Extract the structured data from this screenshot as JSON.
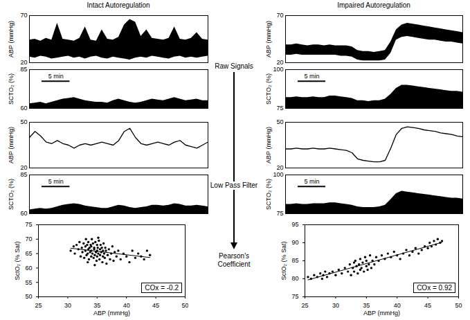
{
  "column_titles": [
    "Intact Autoregulation",
    "Impaired Autoregulation"
  ],
  "stage_labels": [
    "Raw Signals",
    "Low Pass Filter",
    "Pearson's Coefficient"
  ],
  "chart_data": [
    {
      "type": "band",
      "ylabel": "ABP (mmHg)",
      "x": [
        0,
        1,
        2,
        3,
        4,
        5,
        6,
        7,
        8,
        9,
        10,
        11,
        12,
        13,
        14,
        15,
        16,
        17,
        18,
        19,
        20,
        21,
        22,
        23,
        24,
        25,
        26,
        27,
        28,
        29,
        30,
        31,
        32
      ],
      "low": [
        26,
        25,
        27,
        26,
        24,
        25,
        26,
        27,
        25,
        26,
        24,
        26,
        27,
        25,
        24,
        26,
        25,
        24,
        23,
        25,
        26,
        25,
        27,
        26,
        25,
        24,
        26,
        27,
        25,
        26,
        25,
        26,
        27
      ],
      "high": [
        44,
        45,
        43,
        46,
        44,
        62,
        45,
        44,
        43,
        46,
        58,
        44,
        43,
        55,
        45,
        44,
        47,
        60,
        66,
        63,
        48,
        55,
        46,
        45,
        44,
        46,
        58,
        45,
        44,
        46,
        52,
        45,
        44
      ],
      "xlim": [
        0,
        32
      ],
      "ylim": [
        20,
        70
      ],
      "yticks": [
        20,
        70
      ],
      "tick_labels": "y",
      "color": "#000000"
    },
    {
      "type": "area",
      "ylabel": "SCTO₂ (%)",
      "x": [
        0,
        1,
        2,
        3,
        4,
        5,
        6,
        7,
        8,
        9,
        10,
        11,
        12,
        13,
        14,
        15,
        16,
        17,
        18,
        19,
        20,
        21,
        22,
        23,
        24,
        25,
        26,
        27,
        28,
        29,
        30,
        31,
        32
      ],
      "values": [
        63,
        63.5,
        64,
        63,
        64,
        65,
        66,
        66.5,
        67,
        66,
        65,
        64.5,
        64,
        64,
        63.5,
        65,
        66,
        65,
        64,
        63.5,
        64,
        65,
        66,
        65.5,
        65,
        66,
        67,
        66,
        65,
        65.5,
        66,
        65,
        65
      ],
      "xlim": [
        0,
        32
      ],
      "ylim": [
        60,
        85
      ],
      "yticks": [
        60,
        85
      ],
      "tick_labels": "y",
      "color": "#000000",
      "scale_bar": {
        "value": 5,
        "label": "5 min"
      }
    },
    {
      "type": "line",
      "ylabel": "ABP (mmHg)",
      "x": [
        0,
        1,
        2,
        3,
        4,
        5,
        6,
        7,
        8,
        9,
        10,
        11,
        12,
        13,
        14,
        15,
        16,
        17,
        18,
        19,
        20,
        21,
        22,
        23,
        24,
        25,
        26,
        27,
        28,
        29,
        30,
        31,
        32
      ],
      "values": [
        40,
        44,
        41,
        37,
        36,
        38,
        36,
        35,
        33,
        35,
        36,
        35,
        36,
        37,
        36,
        35,
        38,
        44,
        46,
        40,
        36,
        35,
        36,
        37,
        36,
        35,
        37,
        38,
        35,
        34,
        33,
        35,
        37
      ],
      "xlim": [
        0,
        32
      ],
      "ylim": [
        20,
        50
      ],
      "yticks": [
        20,
        50
      ],
      "tick_labels": "y",
      "color": "#000000"
    },
    {
      "type": "area",
      "ylabel": "SCTO₂ (%)",
      "x": [
        0,
        1,
        2,
        3,
        4,
        5,
        6,
        7,
        8,
        9,
        10,
        11,
        12,
        13,
        14,
        15,
        16,
        17,
        18,
        19,
        20,
        21,
        22,
        23,
        24,
        25,
        26,
        27,
        28,
        29,
        30,
        31,
        32
      ],
      "values": [
        62.5,
        63,
        63.5,
        63,
        63.5,
        64.5,
        65.5,
        66,
        66.5,
        66,
        65,
        64.5,
        64,
        63.5,
        63.5,
        64.5,
        65.5,
        65,
        64,
        63.5,
        64,
        64.5,
        65.5,
        65.5,
        65,
        65.5,
        66.5,
        66,
        65,
        65,
        65.5,
        65,
        64.5
      ],
      "xlim": [
        0,
        32
      ],
      "ylim": [
        60,
        85
      ],
      "yticks": [
        60,
        85
      ],
      "tick_labels": "y",
      "color": "#000000",
      "scale_bar": {
        "value": 5,
        "label": "5 min"
      }
    },
    {
      "type": "scatter",
      "xlabel": "ABP (mmHg)",
      "ylabel": "SctO₂ (% Sat)",
      "x": [
        30.5,
        31,
        31.2,
        31.5,
        31.8,
        32,
        32.2,
        32.4,
        32.5,
        32.7,
        32.8,
        33,
        33,
        33.1,
        33.2,
        33.3,
        33.4,
        33.5,
        33.5,
        33.6,
        33.7,
        33.8,
        33.9,
        34,
        34,
        34,
        34.1,
        34.2,
        34.3,
        34.4,
        34.5,
        34.5,
        34.6,
        34.7,
        34.8,
        34.9,
        35,
        35,
        35,
        35.1,
        35.2,
        35.3,
        35.4,
        35.5,
        35.5,
        35.6,
        35.7,
        35.8,
        35.9,
        36,
        36,
        36.1,
        36.2,
        36.3,
        36.4,
        36.5,
        36.6,
        36.8,
        37,
        37.2,
        37.4,
        37.6,
        37.8,
        38,
        38.3,
        38.6,
        39,
        39.5,
        40,
        40.5,
        41,
        41.5,
        42,
        42.5,
        43,
        43.5,
        44,
        35.2,
        34.6,
        33.4
      ],
      "values": [
        66,
        67.5,
        65,
        68,
        66.5,
        69,
        64,
        67,
        65.5,
        68.5,
        63.5,
        66,
        67.5,
        70,
        64.5,
        68,
        65,
        66.5,
        69,
        63,
        67,
        65.5,
        68,
        64,
        66,
        67.5,
        70,
        65,
        68.5,
        63.5,
        66.5,
        67,
        64.5,
        69,
        65.5,
        62.5,
        66,
        68,
        64,
        67,
        65,
        69.5,
        63,
        66.5,
        64.5,
        68,
        65.5,
        67,
        62,
        66,
        64,
        68.5,
        65,
        63.5,
        67,
        66,
        61.5,
        64.5,
        66.5,
        63,
        65,
        67.5,
        62.5,
        65.5,
        64,
        66,
        63,
        65,
        64,
        62,
        66,
        63.5,
        65,
        64,
        63,
        66,
        64.5,
        70.5,
        61,
        62
      ],
      "xlim": [
        25,
        50
      ],
      "xticks": [
        25,
        30,
        35,
        40,
        45,
        50
      ],
      "ylim": [
        50,
        75
      ],
      "yticks": [
        50,
        55,
        60,
        65,
        70,
        75
      ],
      "color": "#000000",
      "annotation": "COx = -0.2"
    },
    {
      "type": "band",
      "ylabel": "ABP (mmHg)",
      "x": [
        0,
        1,
        2,
        3,
        4,
        5,
        6,
        7,
        8,
        9,
        10,
        11,
        12,
        13,
        14,
        15,
        16,
        17,
        18,
        19,
        20,
        21,
        22,
        23,
        24,
        25,
        26,
        27,
        28,
        29,
        30,
        31,
        32
      ],
      "low": [
        28,
        28,
        29,
        28,
        28,
        28,
        28,
        28,
        28,
        28,
        27,
        27,
        26,
        23,
        22,
        22,
        22,
        22,
        23,
        30,
        44,
        47,
        48,
        47,
        46,
        45,
        44,
        44,
        43,
        42,
        42,
        41,
        40
      ],
      "high": [
        39,
        39,
        40,
        39,
        38,
        39,
        39,
        38,
        39,
        38,
        38,
        38,
        37,
        33,
        32,
        32,
        31,
        32,
        33,
        42,
        55,
        60,
        62,
        61,
        60,
        59,
        58,
        57,
        56,
        55,
        54,
        53,
        52
      ],
      "xlim": [
        0,
        32
      ],
      "ylim": [
        20,
        70
      ],
      "yticks": [
        20,
        70
      ],
      "tick_labels": "y",
      "color": "#000000"
    },
    {
      "type": "area",
      "ylabel": "SCTO₂ (%)",
      "x": [
        0,
        1,
        2,
        3,
        4,
        5,
        6,
        7,
        8,
        9,
        10,
        11,
        12,
        13,
        14,
        15,
        16,
        17,
        18,
        19,
        20,
        21,
        22,
        23,
        24,
        25,
        26,
        27,
        28,
        29,
        30,
        31,
        32
      ],
      "values": [
        82,
        82,
        82.5,
        82,
        82,
        82.5,
        82,
        82,
        83,
        83,
        82.5,
        82,
        81.5,
        80,
        80,
        79.5,
        80,
        80,
        81,
        84,
        88,
        90,
        90,
        89.5,
        89,
        88.5,
        88,
        87.5,
        87,
        86.5,
        86,
        86,
        85.5
      ],
      "xlim": [
        0,
        32
      ],
      "ylim": [
        75,
        100
      ],
      "yticks": [
        75,
        100
      ],
      "tick_labels": "y",
      "color": "#000000",
      "scale_bar": {
        "value": 5,
        "label": "5 min"
      }
    },
    {
      "type": "line",
      "ylabel": "ABP (mmHg)",
      "x": [
        0,
        1,
        2,
        3,
        4,
        5,
        6,
        7,
        8,
        9,
        10,
        11,
        12,
        13,
        14,
        15,
        16,
        17,
        18,
        19,
        20,
        21,
        22,
        23,
        24,
        25,
        26,
        27,
        28,
        29,
        30,
        31,
        32
      ],
      "values": [
        32.5,
        32.5,
        33,
        32.5,
        32.5,
        33,
        32.5,
        32.5,
        33,
        32.5,
        32,
        31.5,
        30,
        26,
        25,
        24.5,
        24,
        24,
        25,
        33,
        42,
        46,
        47,
        46.5,
        46,
        45,
        44.5,
        44,
        43,
        42.5,
        42,
        41,
        40.5
      ],
      "xlim": [
        0,
        32
      ],
      "ylim": [
        20,
        50
      ],
      "yticks": [
        20,
        50
      ],
      "tick_labels": "y",
      "color": "#000000"
    },
    {
      "type": "area",
      "ylabel": "SCTO₂ (%)",
      "x": [
        0,
        1,
        2,
        3,
        4,
        5,
        6,
        7,
        8,
        9,
        10,
        11,
        12,
        13,
        14,
        15,
        16,
        17,
        18,
        19,
        20,
        21,
        22,
        23,
        24,
        25,
        26,
        27,
        28,
        29,
        30,
        31,
        32
      ],
      "values": [
        81,
        81,
        81.5,
        81,
        81,
        81.5,
        81.5,
        81.5,
        82,
        82,
        81.5,
        81,
        80.5,
        79.5,
        79,
        79,
        79,
        79.5,
        80.5,
        84,
        88,
        89.5,
        89,
        88.5,
        88,
        87.5,
        87,
        86.5,
        86,
        85.5,
        85,
        85,
        84.5
      ],
      "xlim": [
        0,
        32
      ],
      "ylim": [
        75,
        100
      ],
      "yticks": [
        75,
        100
      ],
      "tick_labels": "y",
      "color": "#000000",
      "scale_bar": {
        "value": 5,
        "label": "5 min"
      }
    },
    {
      "type": "scatter",
      "xlabel": "ABP (mmHg)",
      "ylabel": "SctO₂ (% Sat)",
      "x": [
        25.5,
        26,
        26.5,
        27,
        27.5,
        27.8,
        28,
        28.3,
        28.6,
        29,
        29.5,
        30,
        30.5,
        31,
        31.5,
        32,
        32.3,
        32.5,
        32.8,
        33,
        33,
        33.2,
        33.4,
        33.6,
        33.8,
        34,
        34,
        34.2,
        34.4,
        34.6,
        34.8,
        35,
        35,
        35.2,
        35.4,
        35.6,
        35.8,
        36,
        36.3,
        36.6,
        37,
        37.5,
        38,
        38.5,
        39,
        39.5,
        40,
        40.5,
        41,
        41.5,
        42,
        42.5,
        43,
        43.5,
        44,
        44.5,
        45,
        45.3,
        45.6,
        46,
        46.3,
        46.6,
        47,
        47.3
      ],
      "values": [
        80.5,
        80,
        81,
        80.5,
        81.5,
        80,
        81,
        82,
        80.5,
        81.5,
        82,
        81,
        82.5,
        81.5,
        83,
        82,
        84,
        81,
        83,
        84.5,
        82,
        85,
        83.5,
        81.5,
        84,
        82.5,
        85.5,
        83,
        84.5,
        82,
        86,
        83.5,
        85,
        82.5,
        84,
        86.5,
        83,
        85,
        84,
        86,
        85,
        86.5,
        85.5,
        87,
        86,
        87.5,
        86.5,
        85.5,
        87,
        88,
        86.5,
        87.5,
        88.5,
        87,
        88,
        89,
        88.5,
        90,
        89,
        90.5,
        89.5,
        91,
        90,
        90.5
      ],
      "xlim": [
        25,
        50
      ],
      "xticks": [
        25,
        30,
        35,
        40,
        45,
        50
      ],
      "ylim": [
        75,
        95
      ],
      "yticks": [
        75,
        80,
        85,
        90,
        95
      ],
      "color": "#000000",
      "annotation": "COx = 0.92"
    }
  ]
}
